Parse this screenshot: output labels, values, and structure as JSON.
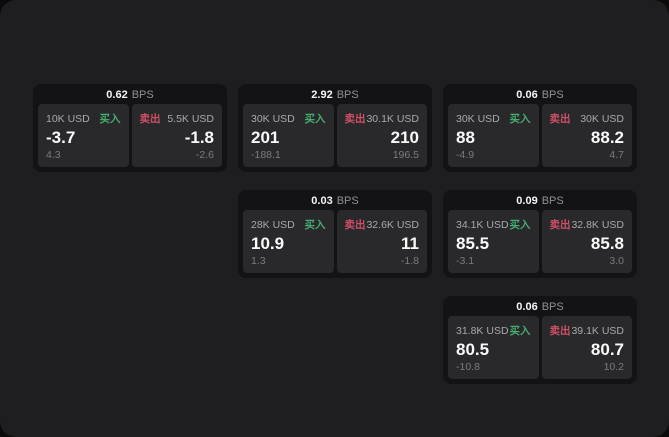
{
  "labels": {
    "bps": "BPS",
    "buy": "买入",
    "sell": "卖出"
  },
  "colors": {
    "buy_green": "#46ab6e",
    "sell_red": "#cd5066",
    "screen_bg": "#1e1e20",
    "card_bg": "#131315",
    "panel_bg": "#29292c"
  },
  "cards": [
    {
      "bps": "0.62",
      "buy": {
        "amount": "10K USD",
        "price": "-3.7",
        "sub": "4.3"
      },
      "sell": {
        "amount": "5.5K USD",
        "price": "-1.8",
        "sub": "-2.6"
      }
    },
    {
      "bps": "2.92",
      "buy": {
        "amount": "30K USD",
        "price": "201",
        "sub": "-188.1"
      },
      "sell": {
        "amount": "30.1K USD",
        "price": "210",
        "sub": "196.5"
      }
    },
    {
      "bps": "0.06",
      "buy": {
        "amount": "30K USD",
        "price": "88",
        "sub": "-4.9"
      },
      "sell": {
        "amount": "30K USD",
        "price": "88.2",
        "sub": "4.7"
      }
    },
    {
      "bps": "0.03",
      "buy": {
        "amount": "28K USD",
        "price": "10.9",
        "sub": "1.3"
      },
      "sell": {
        "amount": "32.6K USD",
        "price": "11",
        "sub": "-1.8"
      }
    },
    {
      "bps": "0.09",
      "buy": {
        "amount": "34.1K USD",
        "price": "85.5",
        "sub": "-3.1"
      },
      "sell": {
        "amount": "32.8K USD",
        "price": "85.8",
        "sub": "3.0"
      }
    },
    {
      "bps": "0.06",
      "buy": {
        "amount": "31.8K USD",
        "price": "80.5",
        "sub": "-10.8"
      },
      "sell": {
        "amount": "39.1K USD",
        "price": "80.7",
        "sub": "10.2"
      }
    }
  ]
}
